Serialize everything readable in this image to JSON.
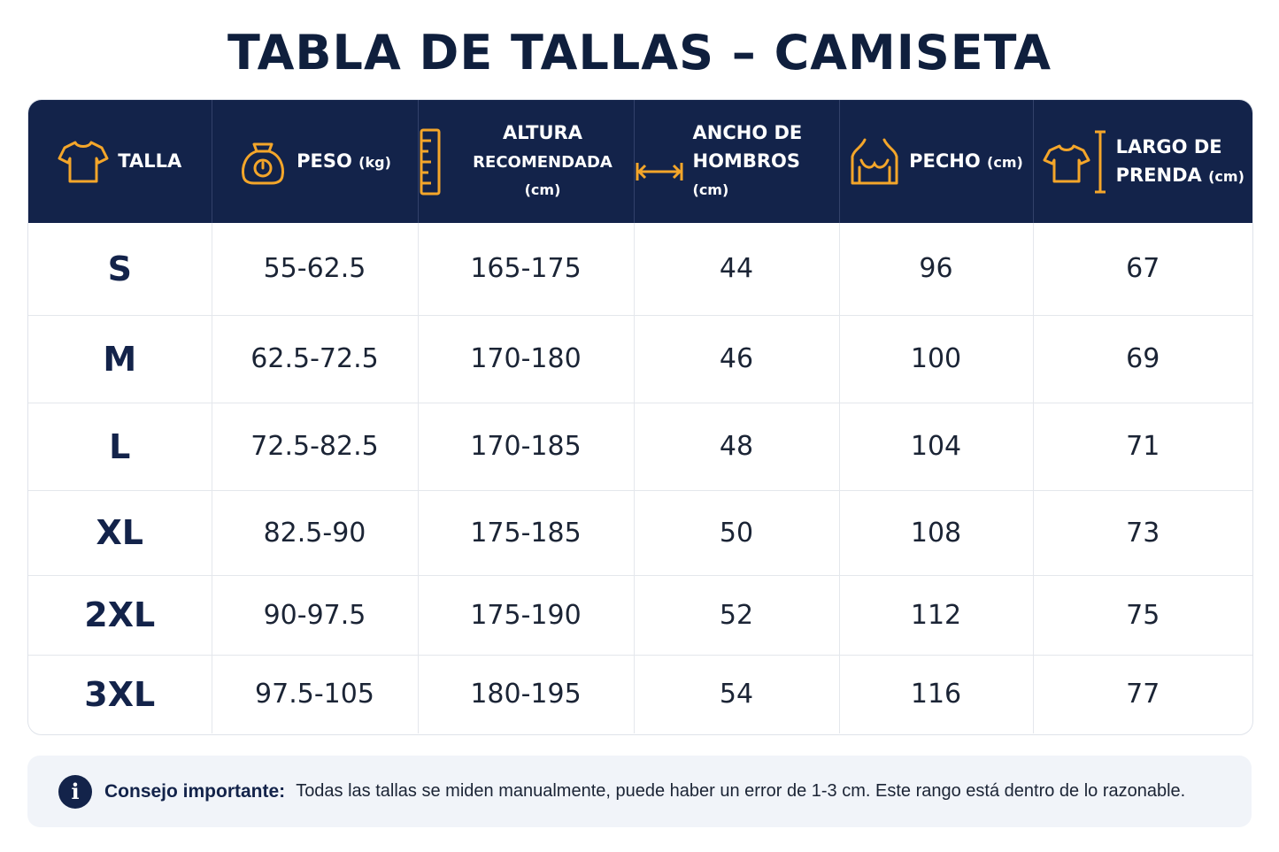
{
  "title": "TABLA DE TALLAS – CAMISETA",
  "colors": {
    "header_bg": "#13234a",
    "accent_icon": "#f4a62a",
    "text_dark": "#0f1f3d"
  },
  "headers": [
    {
      "icon": "tshirt-icon",
      "line1": "TALLA",
      "line2": "",
      "unit": ""
    },
    {
      "icon": "weight-scale-icon",
      "line1": "PESO",
      "line2": "",
      "unit": "(kg)"
    },
    {
      "icon": "ruler-icon",
      "line1": "ALTURA",
      "line2": "RECOMENDADA",
      "unit": "(cm)"
    },
    {
      "icon": "arrows-horizontal-icon",
      "line1": "ANCHO DE",
      "line2": "HOMBROS",
      "unit": "(cm)"
    },
    {
      "icon": "torso-icon",
      "line1": "PECHO",
      "line2": "",
      "unit": "(cm)"
    },
    {
      "icon": "tshirt-length-icon",
      "line1": "LARGO DE",
      "line2": "PRENDA",
      "unit": "(cm)"
    }
  ],
  "rows": [
    [
      "S",
      "55-62.5",
      "165-175",
      "44",
      "96",
      "67"
    ],
    [
      "M",
      "62.5-72.5",
      "170-180",
      "46",
      "100",
      "69"
    ],
    [
      "L",
      "72.5-82.5",
      "170-185",
      "48",
      "104",
      "71"
    ],
    [
      "XL",
      "82.5-90",
      "175-185",
      "50",
      "108",
      "73"
    ],
    [
      "2XL",
      "90-97.5",
      "175-190",
      "52",
      "112",
      "75"
    ],
    [
      "3XL",
      "97.5-105",
      "180-195",
      "54",
      "116",
      "77"
    ]
  ],
  "note": {
    "icon": "info-icon",
    "icon_glyph": "i",
    "label": "Consejo importante:",
    "text": "Todas las tallas se miden manualmente, puede haber un error de 1-3 cm. Este rango está dentro de lo razonable."
  }
}
